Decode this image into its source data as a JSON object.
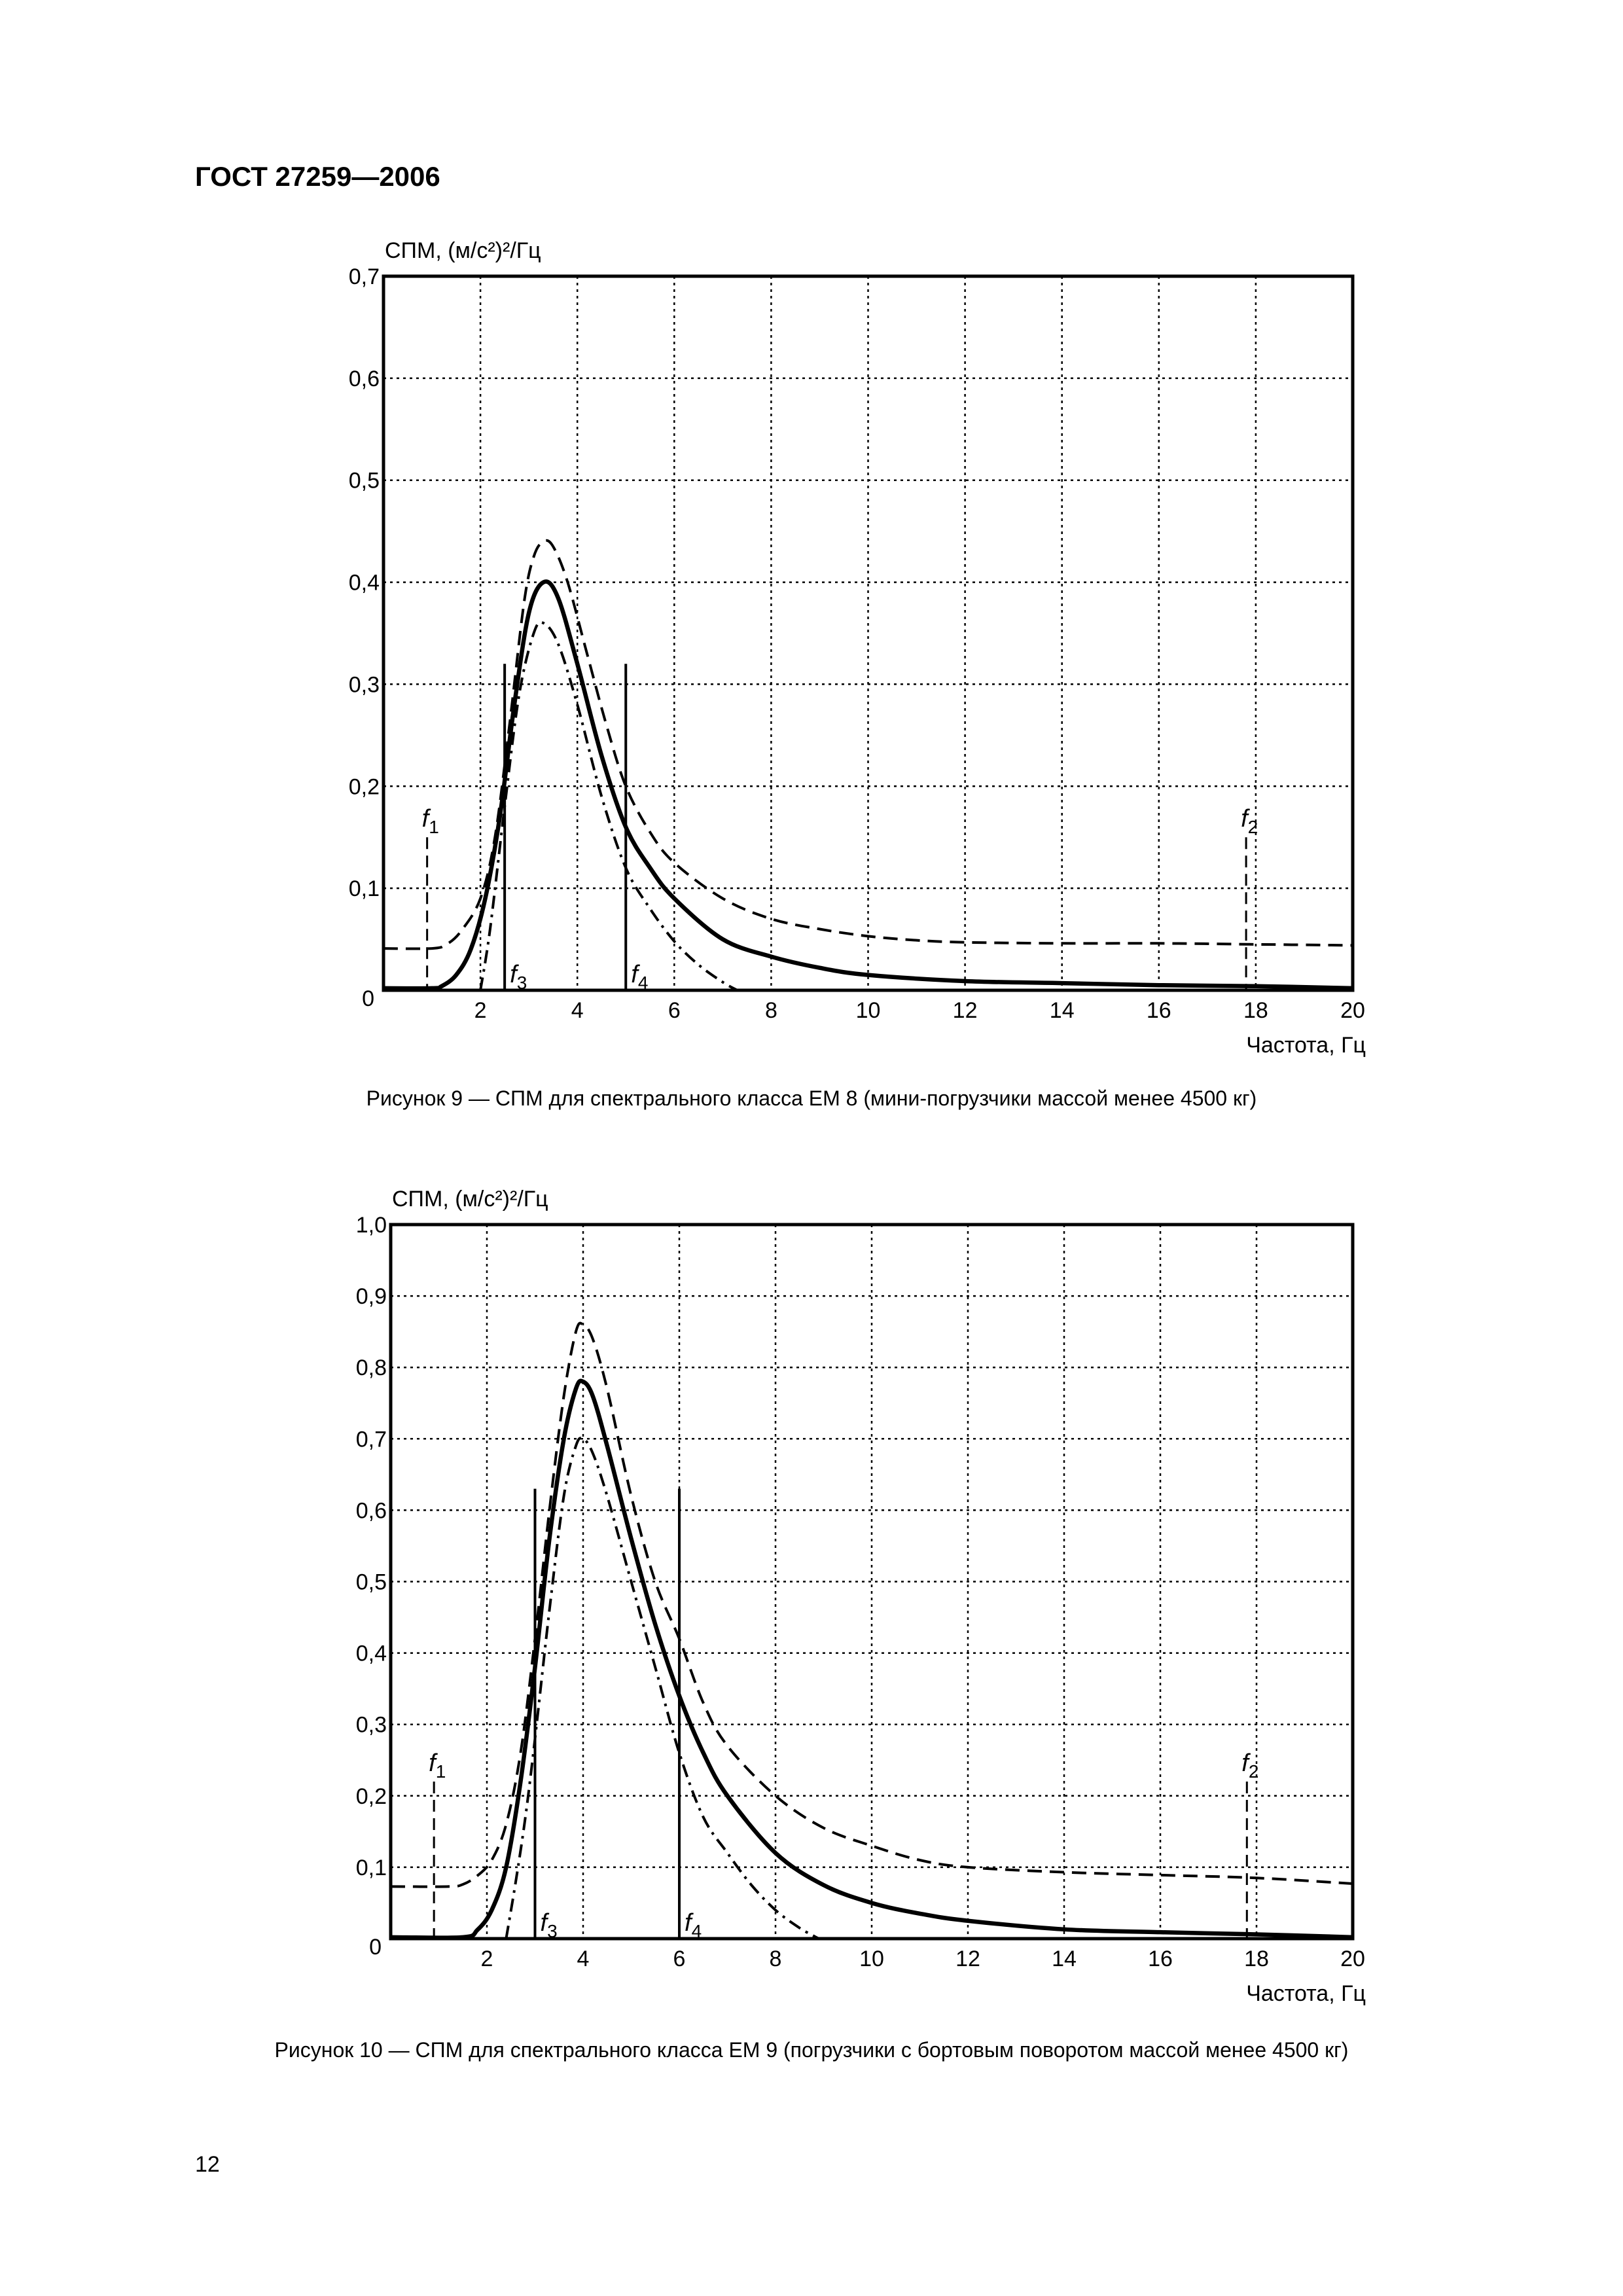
{
  "header": {
    "title": "ГОСТ 27259—2006"
  },
  "page_number": "12",
  "chart_data": [
    {
      "type": "line",
      "caption": "Рисунок 9 — СПМ для спектрального класса ЕМ 8 (мини-погрузчики массой менее 4500 кг)",
      "ylabel": "СПМ, (м/с²)²/Гц",
      "xlabel": "Частота, Гц",
      "xlim": [
        0,
        20
      ],
      "ylim": [
        0,
        0.7
      ],
      "xticks": [
        "0",
        "2",
        "4",
        "6",
        "8",
        "10",
        "12",
        "14",
        "16",
        "18",
        "20"
      ],
      "yticks": [
        "0,1",
        "0,2",
        "0,3",
        "0,4",
        "0,5",
        "0,6",
        "0,7"
      ],
      "origin_label": "0",
      "grid": true,
      "series": [
        {
          "name": "upper",
          "style": "dashed",
          "x": [
            0,
            1.0,
            1.3,
            1.6,
            2.0,
            2.3,
            2.6,
            2.9,
            3.1,
            3.3,
            3.5,
            3.8,
            4.2,
            4.6,
            5.0,
            5.5,
            6.0,
            7.0,
            8.0,
            9.0,
            10,
            11,
            12,
            14,
            16,
            18,
            20
          ],
          "y": [
            0.041,
            0.041,
            0.045,
            0.058,
            0.09,
            0.15,
            0.26,
            0.38,
            0.425,
            0.44,
            0.435,
            0.4,
            0.33,
            0.26,
            0.2,
            0.155,
            0.125,
            0.09,
            0.07,
            0.06,
            0.053,
            0.049,
            0.047,
            0.046,
            0.046,
            0.045,
            0.044
          ]
        },
        {
          "name": "nominal",
          "style": "solid",
          "x": [
            0,
            1.0,
            1.2,
            1.5,
            1.8,
            2.1,
            2.4,
            2.7,
            3.0,
            3.3,
            3.6,
            4.0,
            4.5,
            5.0,
            5.5,
            6.0,
            7.0,
            8.0,
            9.0,
            10,
            12,
            14,
            16,
            18,
            20
          ],
          "y": [
            0.002,
            0.002,
            0.004,
            0.015,
            0.04,
            0.09,
            0.17,
            0.28,
            0.37,
            0.4,
            0.385,
            0.32,
            0.23,
            0.16,
            0.12,
            0.09,
            0.05,
            0.033,
            0.022,
            0.015,
            0.009,
            0.007,
            0.005,
            0.004,
            0.002
          ]
        },
        {
          "name": "lower",
          "style": "dash-dot",
          "x": [
            2.0,
            2.2,
            2.5,
            2.8,
            3.1,
            3.3,
            3.6,
            4.0,
            4.5,
            5.0,
            5.5,
            6.0,
            6.5,
            7.0,
            7.3
          ],
          "y": [
            0,
            0.06,
            0.18,
            0.29,
            0.35,
            0.36,
            0.34,
            0.28,
            0.19,
            0.12,
            0.08,
            0.048,
            0.025,
            0.008,
            0
          ]
        }
      ],
      "markers": [
        {
          "label": "f",
          "sub": "1",
          "x": 0.9,
          "y_top": 0.15,
          "style": "dashed",
          "label_pos": "top"
        },
        {
          "label": "f",
          "sub": "2",
          "x": 17.8,
          "y_top": 0.15,
          "style": "dashed",
          "label_pos": "top"
        },
        {
          "label": "f",
          "sub": "3",
          "x": 2.5,
          "y_top": 0.32,
          "style": "solid",
          "label_pos": "bottom-right"
        },
        {
          "label": "f",
          "sub": "4",
          "x": 5.0,
          "y_top": 0.32,
          "style": "solid",
          "label_pos": "bottom-right"
        }
      ]
    },
    {
      "type": "line",
      "caption": "Рисунок 10 — СПМ для спектрального класса ЕМ 9 (погрузчики с бортовым поворотом массой менее 4500 кг)",
      "ylabel": "СПМ, (м/с²)²/Гц",
      "xlabel": "Частота, Гц",
      "xlim": [
        0,
        20
      ],
      "ylim": [
        0,
        1.0
      ],
      "xticks": [
        "0",
        "2",
        "4",
        "6",
        "8",
        "10",
        "12",
        "14",
        "16",
        "18",
        "20"
      ],
      "yticks": [
        "0,1",
        "0,2",
        "0,3",
        "0,4",
        "0,5",
        "0,6",
        "0,7",
        "0,8",
        "0,9",
        "1,0"
      ],
      "origin_label": "0",
      "grid": true,
      "series": [
        {
          "name": "upper",
          "style": "dashed",
          "x": [
            0,
            1.2,
            1.5,
            1.8,
            2.1,
            2.4,
            2.7,
            3.0,
            3.3,
            3.6,
            3.85,
            4.0,
            4.2,
            4.5,
            5.0,
            5.5,
            6.0,
            6.5,
            7.0,
            8.0,
            9.0,
            10,
            11,
            12,
            14,
            16,
            18,
            20
          ],
          "y": [
            0.073,
            0.073,
            0.076,
            0.088,
            0.11,
            0.16,
            0.26,
            0.42,
            0.6,
            0.76,
            0.85,
            0.86,
            0.84,
            0.77,
            0.62,
            0.5,
            0.42,
            0.33,
            0.27,
            0.2,
            0.155,
            0.13,
            0.11,
            0.1,
            0.093,
            0.089,
            0.085,
            0.077
          ]
        },
        {
          "name": "nominal",
          "style": "solid",
          "x": [
            0,
            1.5,
            1.8,
            2.1,
            2.4,
            2.7,
            3.0,
            3.3,
            3.6,
            3.85,
            4.0,
            4.2,
            4.5,
            5.0,
            5.5,
            6.0,
            6.5,
            7.0,
            8.0,
            9.0,
            10,
            11,
            12,
            14,
            16,
            18,
            20
          ],
          "y": [
            0.002,
            0.002,
            0.012,
            0.04,
            0.1,
            0.22,
            0.38,
            0.56,
            0.7,
            0.77,
            0.78,
            0.76,
            0.69,
            0.56,
            0.44,
            0.34,
            0.26,
            0.2,
            0.12,
            0.075,
            0.05,
            0.035,
            0.025,
            0.013,
            0.009,
            0.006,
            0.002
          ]
        },
        {
          "name": "lower",
          "style": "dash-dot",
          "x": [
            2.4,
            2.6,
            2.8,
            3.0,
            3.3,
            3.6,
            3.85,
            4.0,
            4.2,
            4.5,
            5.0,
            5.5,
            6.0,
            6.5,
            7.0,
            7.5,
            8.0,
            8.5,
            8.9
          ],
          "y": [
            0,
            0.08,
            0.17,
            0.28,
            0.46,
            0.62,
            0.69,
            0.7,
            0.68,
            0.62,
            0.5,
            0.38,
            0.26,
            0.17,
            0.12,
            0.075,
            0.04,
            0.015,
            0
          ]
        }
      ],
      "markers": [
        {
          "label": "f",
          "sub": "1",
          "x": 0.9,
          "y_top": 0.22,
          "style": "dashed",
          "label_pos": "top"
        },
        {
          "label": "f",
          "sub": "2",
          "x": 17.8,
          "y_top": 0.22,
          "style": "dashed",
          "label_pos": "top"
        },
        {
          "label": "f",
          "sub": "3",
          "x": 3.0,
          "y_top": 0.63,
          "style": "solid",
          "label_pos": "bottom-right"
        },
        {
          "label": "f",
          "sub": "4",
          "x": 6.0,
          "y_top": 0.63,
          "style": "solid",
          "label_pos": "bottom-right"
        }
      ]
    }
  ]
}
